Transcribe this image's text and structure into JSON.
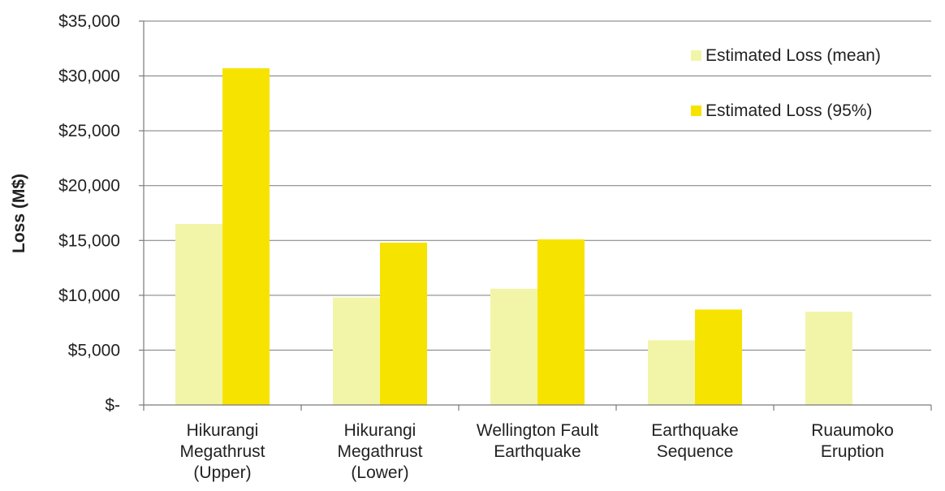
{
  "chart_data": {
    "type": "bar",
    "title": "",
    "xlabel": "",
    "ylabel": "Loss (M$)",
    "categories": [
      [
        "Hikurangi",
        "Megathrust",
        "(Upper)"
      ],
      [
        "Hikurangi",
        "Megathrust",
        "(Lower)"
      ],
      [
        "Wellington Fault",
        "Earthquake"
      ],
      [
        "Earthquake",
        "Sequence"
      ],
      [
        "Ruaumoko",
        "Eruption"
      ]
    ],
    "series": [
      {
        "name": "Estimated Loss (mean)",
        "color": "#f2f5a8",
        "values": [
          16500,
          9800,
          10600,
          5900,
          8500
        ]
      },
      {
        "name": "Estimated Loss (95%)",
        "color": "#f7e300",
        "values": [
          30700,
          14800,
          15100,
          8700,
          null
        ]
      }
    ],
    "ylim": [
      0,
      35000
    ],
    "yticks": [
      0,
      5000,
      10000,
      15000,
      20000,
      25000,
      30000,
      35000
    ],
    "ytick_labels": [
      "$-",
      "$5,000",
      "$10,000",
      "$15,000",
      "$20,000",
      "$25,000",
      "$30,000",
      "$35,000"
    ],
    "grid": true,
    "legend_position": "top-right"
  }
}
